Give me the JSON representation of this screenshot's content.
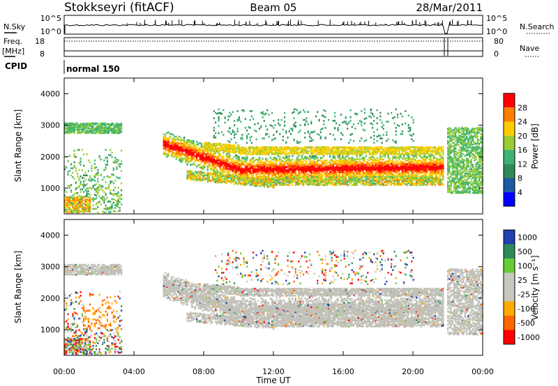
{
  "header": {
    "station": "Stokkseyri (fitACF)",
    "beam": "Beam 05",
    "date": "28/Mar/2011"
  },
  "sky_panel": {
    "left_label": "N.Sky",
    "right_label": "N.Search",
    "left_ticks": [
      "10^5",
      "10^0"
    ],
    "right_ticks": [
      "10^5",
      "10^0"
    ]
  },
  "freq_panel": {
    "left_label_1": "Freq.",
    "left_label_2": "[MHz]",
    "right_label": "Nave",
    "left_ticks": [
      "18",
      "8"
    ],
    "right_ticks": [
      "80",
      "0"
    ]
  },
  "cpid_panel": {
    "label": "CPID",
    "mode": "normal 150"
  },
  "chart_data": [
    {
      "type": "heatmap",
      "quantity": "Power",
      "ylabel": "Slant Range [km]",
      "xlabel": "",
      "ylim": [
        180,
        4500
      ],
      "xlim": [
        0,
        24
      ],
      "y_ticks": [
        1000,
        2000,
        3000,
        4000
      ],
      "y_tick_labels": [
        "1000",
        "2000",
        "3000",
        "4000"
      ],
      "colorbar_label": "Power [dB]",
      "colorbar_ticks": [
        "28",
        "24",
        "20",
        "16",
        "12",
        "8",
        "4"
      ],
      "colorbar_colors": [
        "#ff0000",
        "#ff7f00",
        "#ffcc00",
        "#9acd32",
        "#3cb371",
        "#2e8b57",
        "#1e5aa0",
        "#0000ff"
      ]
    },
    {
      "type": "heatmap",
      "quantity": "Velocity",
      "ylabel": "Slant Range [km]",
      "xlabel": "Time UT",
      "ylim": [
        180,
        4500
      ],
      "xlim": [
        0,
        24
      ],
      "y_ticks": [
        1000,
        2000,
        3000,
        4000
      ],
      "y_tick_labels": [
        "1000",
        "2000",
        "3000",
        "4000"
      ],
      "x_tick_labels": [
        "00:00",
        "04:00",
        "08:00",
        "12:00",
        "16:00",
        "20:00",
        "00:00"
      ],
      "colorbar_label": "Velocity [m s⁻¹]",
      "colorbar_ticks": [
        "1000",
        "500",
        "100",
        "25",
        "-25",
        "-100",
        "-500",
        "-1000"
      ],
      "colorbar_colors": [
        "#2040b0",
        "#2e8b57",
        "#66cc33",
        "#c8c8c0",
        "#c8c8c0",
        "#ffaa00",
        "#ff6600",
        "#ff0000"
      ]
    }
  ],
  "colors": {
    "ground_scatter": "#c0c0b8"
  }
}
